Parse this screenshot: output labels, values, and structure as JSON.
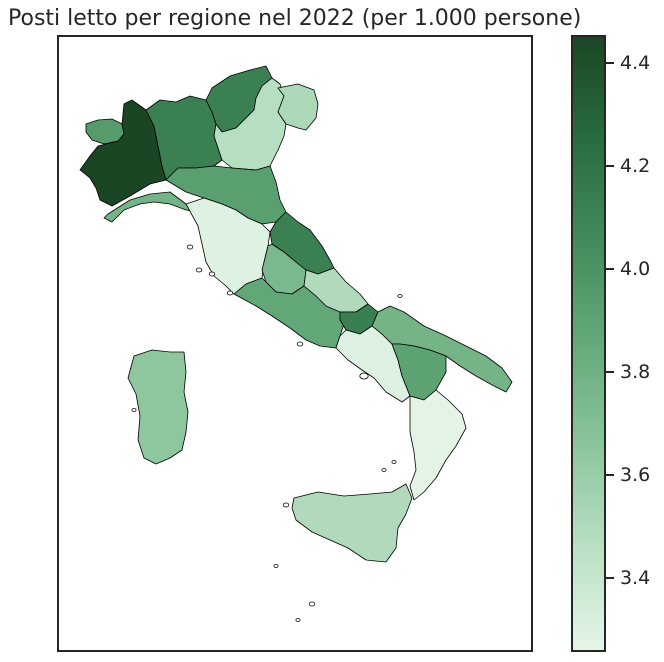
{
  "title": "Posti letto per regione nel 2022 (per 1.000 persone)",
  "colorbar": {
    "min": 3.26,
    "max": 4.45,
    "ticks": [
      "3.4",
      "3.6",
      "3.8",
      "4.0",
      "4.2",
      "4.4"
    ],
    "colors": [
      "#e5f5e9",
      "#b9e0c3",
      "#8cc59d",
      "#65a97a",
      "#438b5c",
      "#2a6b40",
      "#1a4624"
    ]
  },
  "regions": [
    {
      "name": "Piemonte",
      "value": 4.45
    },
    {
      "name": "Valle d'Aosta",
      "value": 3.95
    },
    {
      "name": "Lombardia",
      "value": 4.12
    },
    {
      "name": "Trentino-Alto Adige",
      "value": 4.12
    },
    {
      "name": "Veneto",
      "value": 3.47
    },
    {
      "name": "Friuli-Venezia Giulia",
      "value": 3.52
    },
    {
      "name": "Liguria",
      "value": 3.78
    },
    {
      "name": "Emilia-Romagna",
      "value": 3.92
    },
    {
      "name": "Toscana",
      "value": 3.29
    },
    {
      "name": "Umbria",
      "value": 3.75
    },
    {
      "name": "Marche",
      "value": 4.12
    },
    {
      "name": "Lazio",
      "value": 3.87
    },
    {
      "name": "Abruzzo",
      "value": 3.5
    },
    {
      "name": "Molise",
      "value": 4.13
    },
    {
      "name": "Campania",
      "value": 3.3
    },
    {
      "name": "Puglia",
      "value": 3.78
    },
    {
      "name": "Basilicata",
      "value": 3.9
    },
    {
      "name": "Calabria",
      "value": 3.27
    },
    {
      "name": "Sicilia",
      "value": 3.5
    },
    {
      "name": "Sardegna",
      "value": 3.65
    }
  ]
}
